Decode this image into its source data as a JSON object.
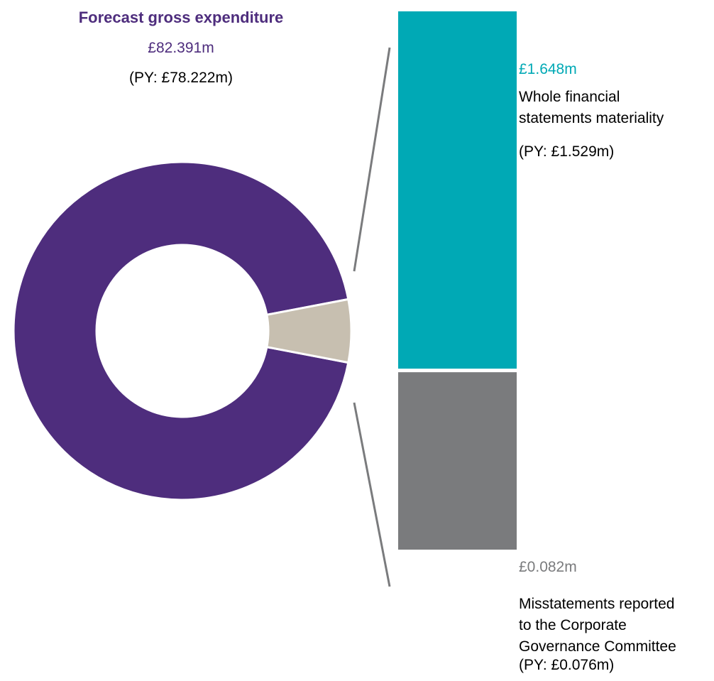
{
  "colors": {
    "gross": "#4e2d7d",
    "materiality_slice": "#c7bfb0",
    "materiality": "#00a9b5",
    "misstatements": "#7a7b7d",
    "connector": "#7a7b7d"
  },
  "chart_data": [
    {
      "type": "pie",
      "title": "Forecast gross expenditure",
      "total": {
        "value": 82.391,
        "unit": "£m",
        "value_label": "£82.391m",
        "prior_year_label": "(PY: £78.222m)"
      },
      "slices": [
        {
          "value": 80.743
        },
        {
          "value": 1.648
        }
      ]
    },
    {
      "type": "bar",
      "series": [
        {
          "value": 1.648,
          "value_label": "£1.648m",
          "label_lines": [
            "Whole financial",
            "statements materiality"
          ],
          "prior_year_label": "(PY: £1.529m)"
        },
        {
          "value": 0.082,
          "value_label": "£0.082m",
          "label_lines": [
            "Misstatements reported",
            "to the Corporate",
            "Governance Committee"
          ],
          "prior_year_label": "(PY: £0.076m)"
        }
      ]
    }
  ]
}
